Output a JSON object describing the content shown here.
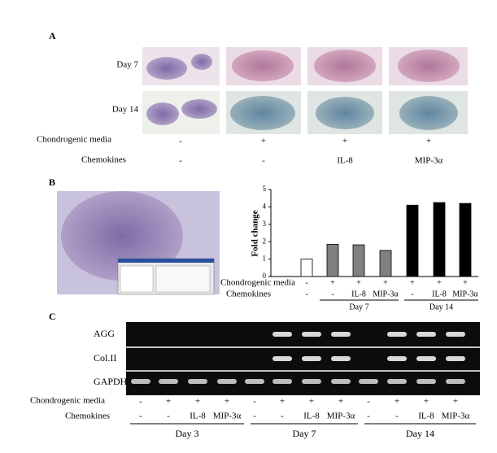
{
  "panel_a": {
    "label": "A",
    "rows": [
      "Day 7",
      "Day 14"
    ],
    "media_label": "Chondrogenic media",
    "media": [
      "-",
      "+",
      "+",
      "+"
    ],
    "chemokines_label": "Chemokines",
    "chemokines": [
      "-",
      "-",
      "IL-8",
      "MIP-3α"
    ]
  },
  "panel_b": {
    "label": "B"
  },
  "chart_data": {
    "type": "bar",
    "y_label": "Fold change",
    "values": [
      1,
      1.85,
      1.82,
      1.5,
      4.1,
      4.25,
      4.2
    ],
    "colors": [
      "#ffffff",
      "#808080",
      "#808080",
      "#808080",
      "#000000",
      "#000000",
      "#000000"
    ],
    "ylim": [
      0,
      5
    ],
    "yticks": [
      0,
      1,
      2,
      3,
      4,
      5
    ],
    "media_label": "Chondrogenic media",
    "media": [
      "-",
      "+",
      "+",
      "+",
      "+",
      "+",
      "+"
    ],
    "chemokines_label": "Chemokines",
    "chemokines": [
      "-",
      "-",
      "IL-8",
      "MIP-3α",
      "-",
      "IL-8",
      "MIP-3α"
    ],
    "groups": [
      "Day 7",
      "Day 14"
    ]
  },
  "panel_c": {
    "label": "C",
    "genes": [
      "AGG",
      "Col.II",
      "GAPDH"
    ],
    "media_label": "Chondrogenic media",
    "media": [
      "-",
      "+",
      "+",
      "+",
      "-",
      "+",
      "+",
      "+",
      "-",
      "+",
      "+",
      "+"
    ],
    "chemokines_label": "Chemokines",
    "chemokines": [
      "-",
      "-",
      "IL-8",
      "MIP-3α",
      "-",
      "-",
      "IL-8",
      "MIP-3α",
      "-",
      "-",
      "IL-8",
      "MIP-3α"
    ],
    "groups": [
      "Day 3",
      "Day 7",
      "Day 14"
    ]
  }
}
